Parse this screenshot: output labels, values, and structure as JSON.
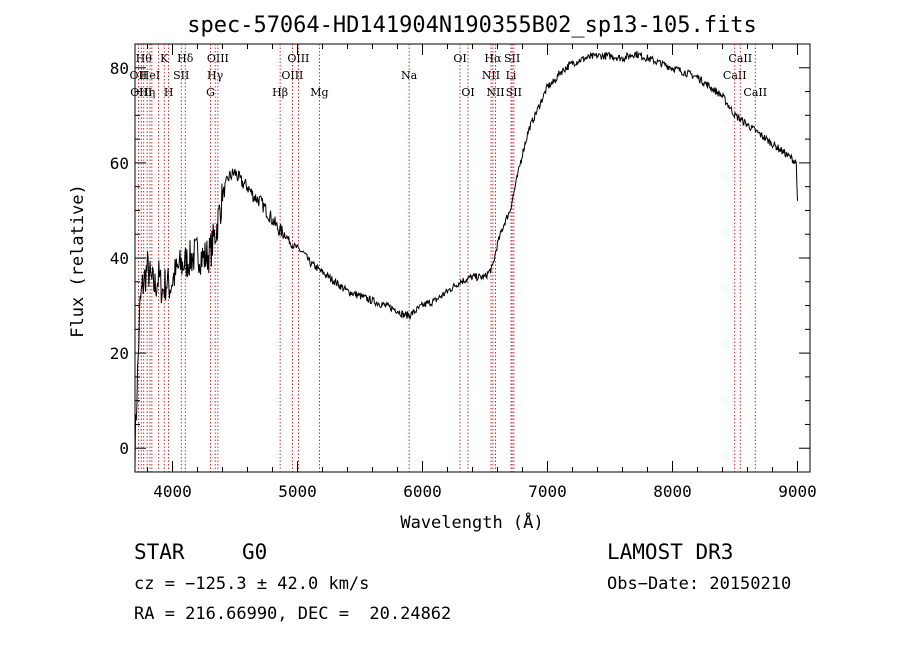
{
  "chart_data": {
    "type": "line",
    "title": "spec-57064-HD141904N190355B02_sp13-105.fits",
    "xlabel": "Wavelength (Å)",
    "ylabel": "Flux (relative)",
    "xlim": [
      3700,
      9100
    ],
    "ylim": [
      -5,
      85
    ],
    "xticks": [
      4000,
      5000,
      6000,
      7000,
      8000,
      9000
    ],
    "yticks": [
      0,
      20,
      40,
      60,
      80
    ],
    "grid": false,
    "series": [
      {
        "name": "flux",
        "x": [
          3700,
          3720,
          3740,
          3760,
          3780,
          3800,
          3830,
          3860,
          3890,
          3920,
          3950,
          3980,
          4010,
          4050,
          4100,
          4150,
          4200,
          4250,
          4300,
          4350,
          4400,
          4450,
          4500,
          4550,
          4600,
          4650,
          4700,
          4750,
          4800,
          4850,
          4900,
          4950,
          5000,
          5050,
          5100,
          5150,
          5200,
          5300,
          5400,
          5500,
          5600,
          5700,
          5800,
          5850,
          5900,
          5950,
          6000,
          6100,
          6200,
          6300,
          6400,
          6500,
          6560,
          6600,
          6650,
          6700,
          6750,
          6800,
          6850,
          6900,
          6950,
          7000,
          7050,
          7100,
          7150,
          7200,
          7300,
          7400,
          7500,
          7600,
          7700,
          7800,
          7900,
          8000,
          8100,
          8200,
          8300,
          8400,
          8450,
          8500,
          8550,
          8600,
          8650,
          8700,
          8750,
          8800,
          8850,
          8900,
          8950,
          8990,
          9000
        ],
        "y": [
          0,
          15,
          30,
          34,
          36,
          38,
          35,
          34,
          36,
          33,
          35,
          34,
          36,
          38,
          39,
          40,
          41,
          40,
          41,
          46,
          53,
          57,
          58,
          56,
          55,
          53,
          52,
          50,
          48,
          46,
          45,
          43,
          42,
          41,
          39,
          38,
          37,
          35,
          33,
          32,
          31,
          30,
          29,
          28,
          28,
          29,
          30,
          31,
          33,
          35,
          36,
          36,
          38,
          43,
          47,
          50,
          56,
          62,
          67,
          70,
          73,
          76,
          77,
          79,
          80,
          81,
          82,
          82.5,
          82.5,
          82,
          83,
          82,
          81,
          80,
          79,
          78,
          76,
          74,
          72,
          70,
          69,
          68,
          67,
          66,
          65,
          64,
          63,
          62,
          61,
          60,
          52
        ]
      }
    ],
    "lines": [
      {
        "x": 3727,
        "label": "OII",
        "row": 1
      },
      {
        "x": 3750,
        "label": "OIII",
        "row": 2
      },
      {
        "x": 3770,
        "label": "Hθ",
        "row": 0
      },
      {
        "x": 3797,
        "label": "Hη",
        "row": 2
      },
      {
        "x": 3820,
        "label": "HeI",
        "row": 1
      },
      {
        "x": 3835,
        "label": "",
        "row": 0
      },
      {
        "x": 3889,
        "label": "",
        "row": 0
      },
      {
        "x": 3934,
        "label": "K",
        "row": 0
      },
      {
        "x": 3969,
        "label": "H",
        "row": 2
      },
      {
        "x": 4070,
        "label": "SII",
        "row": 1
      },
      {
        "x": 4102,
        "label": "Hδ",
        "row": 0
      },
      {
        "x": 4304,
        "label": "G",
        "row": 2
      },
      {
        "x": 4341,
        "label": "Hγ",
        "row": 1
      },
      {
        "x": 4363,
        "label": "OIII",
        "row": 0
      },
      {
        "x": 4861,
        "label": "Hβ",
        "row": 2
      },
      {
        "x": 4959,
        "label": "OIII",
        "row": 1
      },
      {
        "x": 5007,
        "label": "OIII",
        "row": 0
      },
      {
        "x": 5175,
        "label": "Mg",
        "row": 2
      },
      {
        "x": 5893,
        "label": "Na",
        "row": 1
      },
      {
        "x": 6300,
        "label": "OI",
        "row": 0
      },
      {
        "x": 6364,
        "label": "OI",
        "row": 2
      },
      {
        "x": 6548,
        "label": "NII",
        "row": 1
      },
      {
        "x": 6563,
        "label": "Hα",
        "row": 0
      },
      {
        "x": 6584,
        "label": "NII",
        "row": 2
      },
      {
        "x": 6708,
        "label": "Li",
        "row": 1
      },
      {
        "x": 6717,
        "label": "SII",
        "row": 0
      },
      {
        "x": 6731,
        "label": "SII",
        "row": 2
      },
      {
        "x": 8498,
        "label": "CaII",
        "row": 1
      },
      {
        "x": 8542,
        "label": "CaII",
        "row": 0
      },
      {
        "x": 8662,
        "label": "CaII",
        "row": 2
      }
    ]
  },
  "info": {
    "class": "STAR",
    "subclass": "G0",
    "survey": "LAMOST DR3",
    "cz": "cz = −125.3 ± 42.0 km/s",
    "obs_date": "Obs−Date: 20150210",
    "radec": "RA = 216.66990, DEC =  20.24862"
  }
}
